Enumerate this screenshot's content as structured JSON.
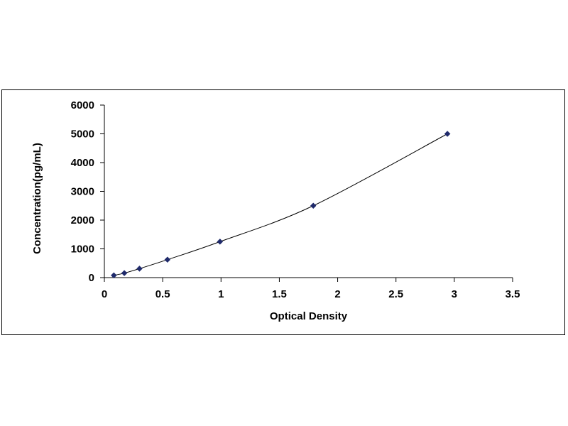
{
  "chart_data": {
    "type": "scatter",
    "title": "",
    "xlabel": "Optical Density",
    "ylabel": "Concentration(pg/mL)",
    "xlim": [
      0,
      3.5
    ],
    "ylim": [
      0,
      6000
    ],
    "x_ticks": [
      "0",
      "0.5",
      "1",
      "1.5",
      "2",
      "2.5",
      "3",
      "3.5"
    ],
    "y_ticks": [
      "0",
      "1000",
      "2000",
      "3000",
      "4000",
      "5000",
      "6000"
    ],
    "grid": false,
    "legend": "none",
    "series": [
      {
        "x": [
          0.081,
          0.171,
          0.301,
          0.541,
          0.991,
          1.791,
          2.941
        ],
        "y": [
          78,
          156,
          312,
          625,
          1250,
          2500,
          5000
        ],
        "marker": "diamond",
        "trendline": "smooth",
        "color": "#1f2a6b"
      }
    ]
  },
  "colors": {
    "marker": "#1f2a6b",
    "line": "#000000",
    "axis": "#000000"
  }
}
